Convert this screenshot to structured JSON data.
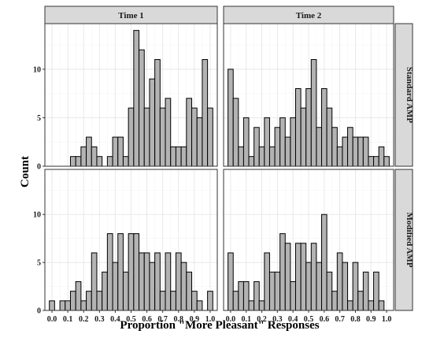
{
  "chart_data": {
    "type": "bar",
    "xlabel": "Proportion \"More Pleasant\" Responses",
    "ylabel": "Count",
    "column_facets": [
      "Time 1",
      "Time 2"
    ],
    "row_facets": [
      "Standard AMP",
      "Modified AMP"
    ],
    "x_ticks": [
      "0.0",
      "0.1",
      "0.2",
      "0.3",
      "0.4",
      "0.5",
      "0.6",
      "0.7",
      "0.8",
      "0.9",
      "1.0"
    ],
    "y_ticks": [
      "0",
      "5",
      "10"
    ],
    "xlim": [
      -0.045,
      1.045
    ],
    "ylim": [
      0,
      14.7
    ],
    "bin_width": 0.03333,
    "bin_centers": [
      0.0,
      0.0333,
      0.0667,
      0.1,
      0.1333,
      0.1667,
      0.2,
      0.2333,
      0.2667,
      0.3,
      0.3333,
      0.3667,
      0.4,
      0.4333,
      0.4667,
      0.5,
      0.5333,
      0.5667,
      0.6,
      0.6333,
      0.6667,
      0.7,
      0.7333,
      0.7667,
      0.8,
      0.8333,
      0.8667,
      0.9,
      0.9333,
      0.9667,
      1.0
    ],
    "panels": [
      {
        "row": "Standard AMP",
        "col": "Time 1",
        "values": [
          0,
          0,
          0,
          0,
          1,
          1,
          2,
          3,
          2,
          1,
          0,
          1,
          3,
          3,
          1,
          6,
          14,
          12,
          6,
          9,
          11,
          6,
          7,
          2,
          2,
          2,
          7,
          6,
          5,
          11,
          6
        ]
      },
      {
        "row": "Standard AMP",
        "col": "Time 2",
        "values": [
          10,
          7,
          2,
          5,
          1,
          4,
          2,
          5,
          2,
          4,
          5,
          3,
          5,
          8,
          6,
          8,
          11,
          4,
          8,
          6,
          4,
          2,
          3,
          4,
          3,
          3,
          3,
          1,
          1,
          2,
          1
        ]
      },
      {
        "row": "Modified AMP",
        "col": "Time 1",
        "values": [
          1,
          0,
          1,
          1,
          2,
          3,
          1,
          2,
          6,
          2,
          4,
          8,
          5,
          8,
          4,
          8,
          8,
          6,
          6,
          5,
          6,
          2,
          6,
          2,
          6,
          5,
          4,
          2,
          1,
          0,
          2
        ]
      },
      {
        "row": "Modified AMP",
        "col": "Time 2",
        "values": [
          6,
          2,
          3,
          3,
          1,
          3,
          1,
          6,
          4,
          4,
          8,
          7,
          3,
          7,
          7,
          5,
          7,
          5,
          10,
          4,
          2,
          6,
          5,
          1,
          5,
          2,
          4,
          1,
          4,
          1,
          0
        ]
      }
    ],
    "grid": true,
    "legend": "none"
  }
}
